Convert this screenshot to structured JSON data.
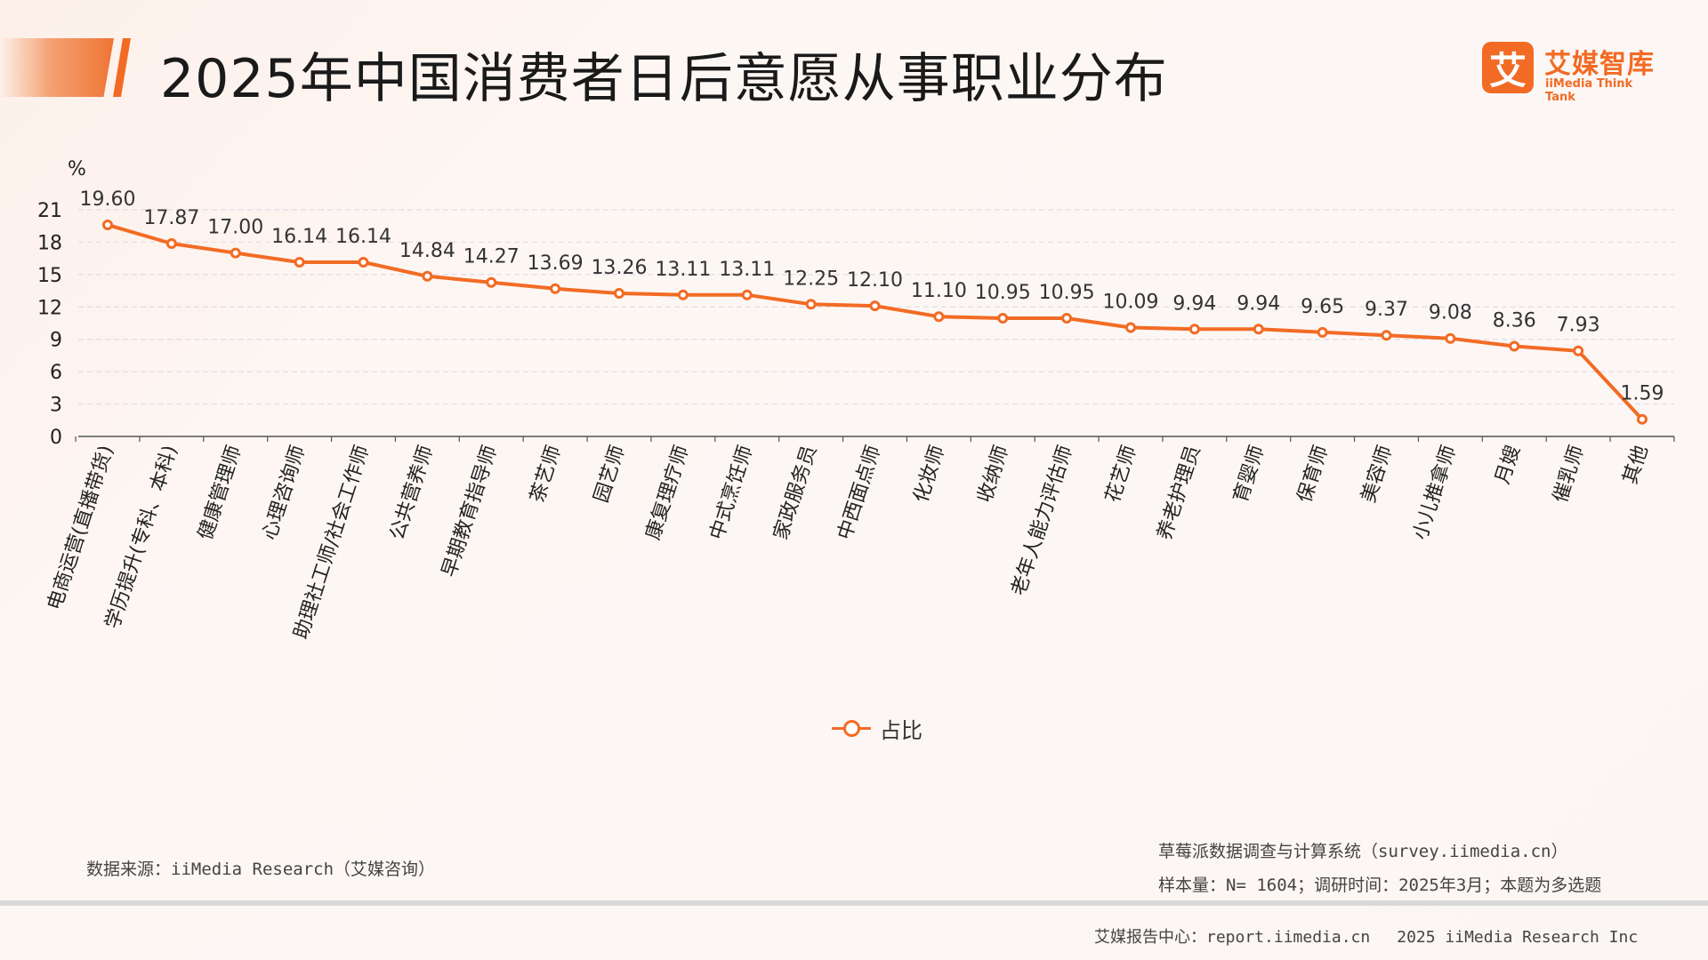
{
  "header": {
    "title": "2025年中国消费者日后意愿从事职业分布"
  },
  "logo": {
    "mark": "艾",
    "name_cn": "艾媒智库",
    "name_en": "iiMedia Think Tank"
  },
  "chart_data": {
    "type": "line",
    "title": "2025年中国消费者日后意愿从事职业分布",
    "y_unit": "%",
    "ylim": [
      0,
      21
    ],
    "y_ticks": [
      0,
      3,
      6,
      9,
      12,
      15,
      18,
      21
    ],
    "grid": true,
    "legend_position": "bottom",
    "color": "#f26b24",
    "categories": [
      "电商运营(直播带货)",
      "学历提升(专科、本科)",
      "健康管理师",
      "心理咨询师",
      "助理社工师/社会工作师",
      "公共营养师",
      "早期教育指导师",
      "茶艺师",
      "园艺师",
      "康复理疗师",
      "中式烹饪师",
      "家政服务员",
      "中西面点师",
      "化妆师",
      "收纳师",
      "老年人能力评估师",
      "花艺师",
      "养老护理员",
      "育婴师",
      "保育师",
      "美容师",
      "小儿推拿师",
      "月嫂",
      "催乳师",
      "其他"
    ],
    "series": [
      {
        "name": "占比",
        "values": [
          19.6,
          17.87,
          17.0,
          16.14,
          16.14,
          14.84,
          14.27,
          13.69,
          13.26,
          13.11,
          13.11,
          12.25,
          12.1,
          11.1,
          10.95,
          10.95,
          10.09,
          9.94,
          9.94,
          9.65,
          9.37,
          9.08,
          8.36,
          7.93,
          1.59
        ],
        "labels": [
          "19.60",
          "17.87",
          "17.00",
          "16.14",
          "16.14",
          "14.84",
          "14.27",
          "13.69",
          "13.26",
          "13.11",
          "13.11",
          "12.25",
          "12.10",
          "11.10",
          "10.95",
          "10.95",
          "10.09",
          "9.94",
          "9.94",
          "9.65",
          "9.37",
          "9.08",
          "8.36",
          "7.93",
          "1.59"
        ]
      }
    ]
  },
  "legend": {
    "label": "占比"
  },
  "footer": {
    "source": "数据来源：iiMedia Research（艾媒咨询）",
    "system": "草莓派数据调查与计算系统（survey.iimedia.cn）",
    "sample": "样本量：N= 1604；调研时间：2025年3月；本题为多选题",
    "report_center": "艾媒报告中心：report.iimedia.cn",
    "copyright": "2025 iiMedia Research Inc"
  }
}
